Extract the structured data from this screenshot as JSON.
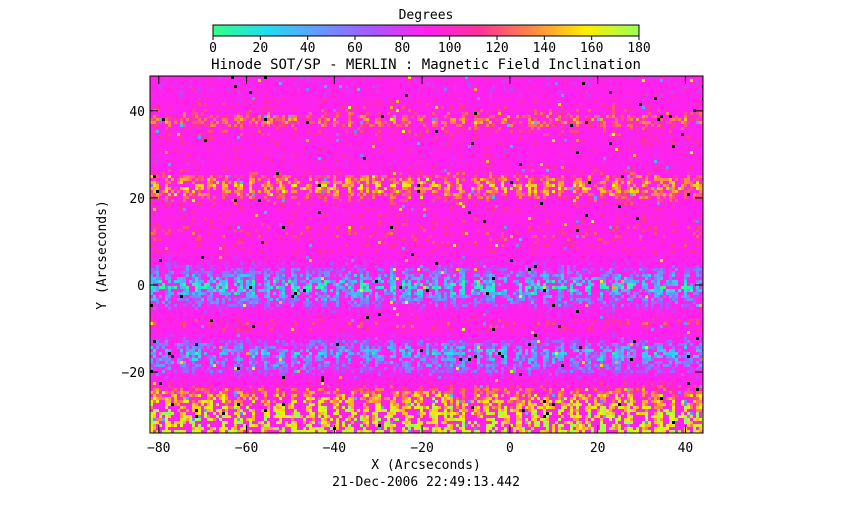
{
  "chart_data": {
    "type": "heatmap",
    "title": "Hinode SOT/SP - MERLIN : Magnetic Field Inclination",
    "xlabel": "X (Arcseconds)",
    "ylabel": "Y (Arcseconds)",
    "xlim": [
      -82,
      44
    ],
    "ylim": [
      -34,
      48
    ],
    "x_ticks": [
      -80,
      -60,
      -40,
      -20,
      0,
      20,
      40
    ],
    "y_ticks": [
      -20,
      0,
      20,
      40
    ],
    "grid": false,
    "timestamp": "21-Dec-2006 22:49:13.442",
    "colorbar": {
      "label": "Degrees",
      "range": [
        0,
        180
      ],
      "ticks": [
        0,
        20,
        40,
        60,
        80,
        100,
        120,
        140,
        160,
        180
      ],
      "colors": [
        "#33ff88",
        "#22ddee",
        "#6699ff",
        "#aa55ff",
        "#ff22ee",
        "#ff3399",
        "#ff8844",
        "#ffee00",
        "#99ff55"
      ]
    },
    "dominant_value_deg": 95,
    "bands": [
      {
        "y": 44,
        "mean_deg": 90
      },
      {
        "y": 38,
        "mean_deg": 118
      },
      {
        "y": 34,
        "mean_deg": 98
      },
      {
        "y": 28,
        "mean_deg": 92
      },
      {
        "y": 23,
        "mean_deg": 130
      },
      {
        "y": 18,
        "mean_deg": 96
      },
      {
        "y": 12,
        "mean_deg": 108
      },
      {
        "y": 6,
        "mean_deg": 92
      },
      {
        "y": 0,
        "mean_deg": 45
      },
      {
        "y": -5,
        "mean_deg": 82
      },
      {
        "y": -9,
        "mean_deg": 110
      },
      {
        "y": -15,
        "mean_deg": 55
      },
      {
        "y": -20,
        "mean_deg": 78
      },
      {
        "y": -25,
        "mean_deg": 125
      },
      {
        "y": -30,
        "mean_deg": 140
      }
    ]
  }
}
